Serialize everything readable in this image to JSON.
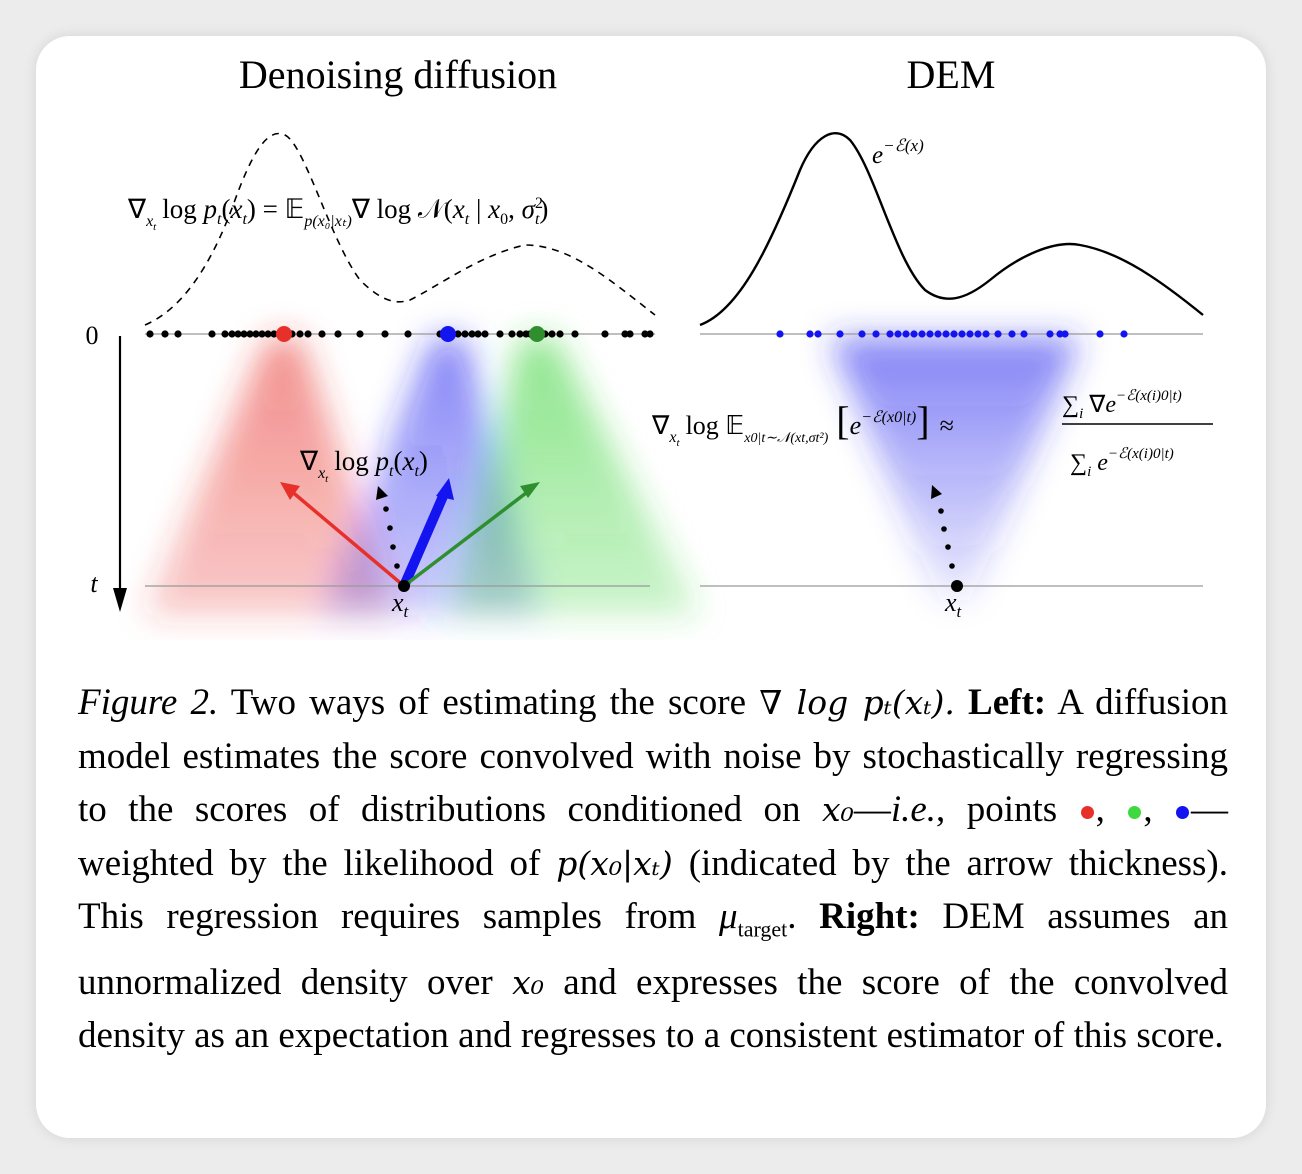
{
  "panels": {
    "left_title": "Denoising diffusion",
    "right_title": "DEM"
  },
  "axis": {
    "zero_label": "0",
    "t_label": "t",
    "xt_label_left": "x",
    "xt_label_sub": "t",
    "xt_label_right": "x"
  },
  "equations": {
    "left_top_nabla": "∇",
    "left_top_sub_x": "x",
    "left_top_sub_t": "t",
    "left_top_body": "log p",
    "left_top_rest": "(x",
    "left_top_rest2": ") = ",
    "left_top_E": "𝔼",
    "left_top_Esub": "p(x₀|xₜ)",
    "left_top_tail": "∇ log 𝒩(x",
    "left_top_tail2": " | x",
    "left_top_tail3": ", σ",
    "left_top_tail4": ")",
    "left_mid": "log p",
    "right_density": "e",
    "right_density_sup": "−ℰ(x)",
    "right_eq_log": "log 𝔼",
    "right_eq_sub": "x0|t∼𝒩(xt,σt²)",
    "right_eq_bracket_e": "e",
    "right_eq_bracket_sup": "−ℰ(x0|t)",
    "right_eq_approx": "≈",
    "right_num": "∑ ∇e",
    "right_num_sup": "−ℰ(x(i)0|t)",
    "right_den": "∑ e",
    "right_den_sup": "−ℰ(x(i)0|t)",
    "sub_i": "i"
  },
  "colors": {
    "red": "#e8302a",
    "blue": "#1414f0",
    "green": "#2f8f2f",
    "green_light": "#3fd83f",
    "black": "#000000",
    "axis_gray": "#999999"
  },
  "caption": {
    "fig_label": "Figure 2.",
    "part1": " Two ways of estimating the score ",
    "score_expr": "∇ log pₜ(xₜ).",
    "left_label": "Left:",
    "part2": " A diffusion model estimates the score convolved with noise by stochastically regressing to the scores of distributions conditioned on ",
    "x0": "x₀",
    "dash1": "—",
    "ie": "i.e.",
    "part3": ", points ",
    "comma1": ", ",
    "comma2": ", ",
    "part4": "—weighted by the likelihood of ",
    "likelihood": "p(x₀|xₜ)",
    "part5": " (indicated by the arrow thickness). This regression requires samples from ",
    "mu": "μ",
    "mu_sub": "target",
    "part6": ". ",
    "right_label": "Right:",
    "part7": " DEM assumes an unnormalized density over ",
    "x0b": "x₀",
    "part8": " and expresses the score of the convolved density as an expectation and regresses to a consistent estimator of this score."
  }
}
